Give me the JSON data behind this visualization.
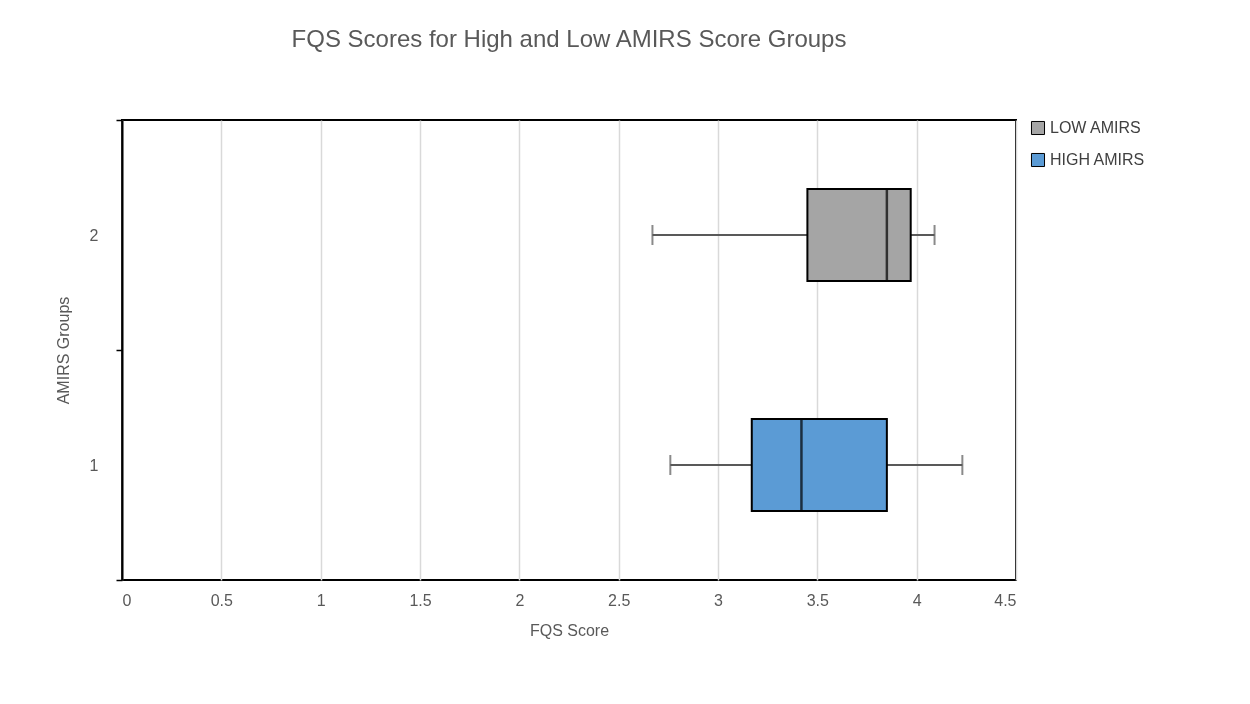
{
  "chart_data": {
    "type": "box",
    "orientation": "horizontal",
    "title": "FQS Scores for High and Low AMIRS Score Groups",
    "xlabel": "FQS Score",
    "ylabel": "AMIRS Groups",
    "categories": [
      "2",
      "1"
    ],
    "xlim": [
      0,
      4.5
    ],
    "xticks": [
      0,
      0.5,
      1,
      1.5,
      2,
      2.5,
      3,
      3.5,
      4,
      4.5
    ],
    "grid": "x",
    "legend": "right",
    "series": [
      {
        "name": "LOW AMIRS",
        "color": "#a5a5a5",
        "boxes": [
          {
            "low": 2.67,
            "q1": 3.45,
            "median": 3.85,
            "q3": 3.97,
            "high": 4.09
          },
          null
        ]
      },
      {
        "name": "HIGH AMIRS",
        "color": "#5b9bd5",
        "boxes": [
          null,
          {
            "low": 2.76,
            "q1": 3.17,
            "median": 3.42,
            "q3": 3.85,
            "high": 4.23
          }
        ]
      }
    ]
  }
}
